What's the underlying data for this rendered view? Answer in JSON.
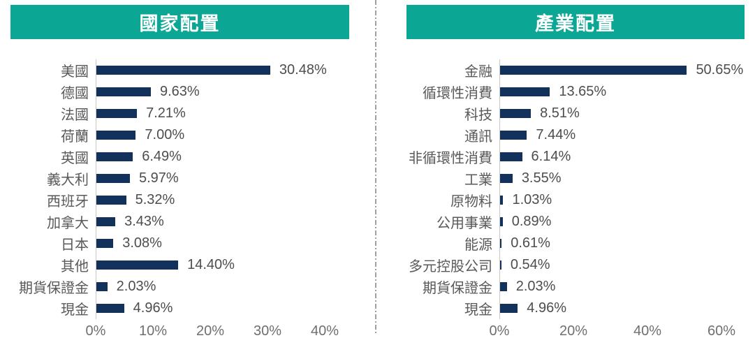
{
  "colors": {
    "background": "#FFFFFF",
    "header_bg": "#0BA794",
    "header_text": "#FFFFFF",
    "bar_fill": "#13325B",
    "category_text": "#595959",
    "value_text": "#4D4D4D",
    "tick_text": "#6F6F6F",
    "axis_line": "#C9C9C9",
    "divider": "#A0A0A0"
  },
  "chart_data": [
    {
      "type": "bar",
      "orientation": "horizontal",
      "title": "國家配置",
      "categories": [
        "美國",
        "德國",
        "法國",
        "荷蘭",
        "英國",
        "義大利",
        "西班牙",
        "加拿大",
        "日本",
        "其他",
        "期貨保證金",
        "現金"
      ],
      "values": [
        30.48,
        9.63,
        7.21,
        7.0,
        6.49,
        5.97,
        5.32,
        3.43,
        3.08,
        14.4,
        2.03,
        4.96
      ],
      "value_labels": [
        "30.48%",
        "9.63%",
        "7.21%",
        "7.00%",
        "6.49%",
        "5.97%",
        "5.32%",
        "3.43%",
        "3.08%",
        "14.40%",
        "2.03%",
        "4.96%"
      ],
      "x_tick_labels": [
        "0%",
        "10%",
        "20%",
        "30%",
        "40%"
      ],
      "x_tick_values": [
        0,
        10,
        20,
        30,
        40
      ],
      "xlim": [
        0,
        44
      ],
      "grid": false,
      "legend": false,
      "data_labels": true
    },
    {
      "type": "bar",
      "orientation": "horizontal",
      "title": "產業配置",
      "categories": [
        "金融",
        "循環性消費",
        "科技",
        "通訊",
        "非循環性消費",
        "工業",
        "原物料",
        "公用事業",
        "能源",
        "多元控股公司",
        "期貨保證金",
        "現金"
      ],
      "values": [
        50.65,
        13.65,
        8.51,
        7.44,
        6.14,
        3.55,
        1.03,
        0.89,
        0.61,
        0.54,
        2.03,
        4.96
      ],
      "value_labels": [
        "50.65%",
        "13.65%",
        "8.51%",
        "7.44%",
        "6.14%",
        "3.55%",
        "1.03%",
        "0.89%",
        "0.61%",
        "0.54%",
        "2.03%",
        "4.96%"
      ],
      "x_tick_labels": [
        "0%",
        "20%",
        "40%",
        "60%"
      ],
      "x_tick_values": [
        0,
        20,
        40,
        60
      ],
      "xlim": [
        0,
        66
      ],
      "grid": false,
      "legend": false,
      "data_labels": true
    }
  ]
}
